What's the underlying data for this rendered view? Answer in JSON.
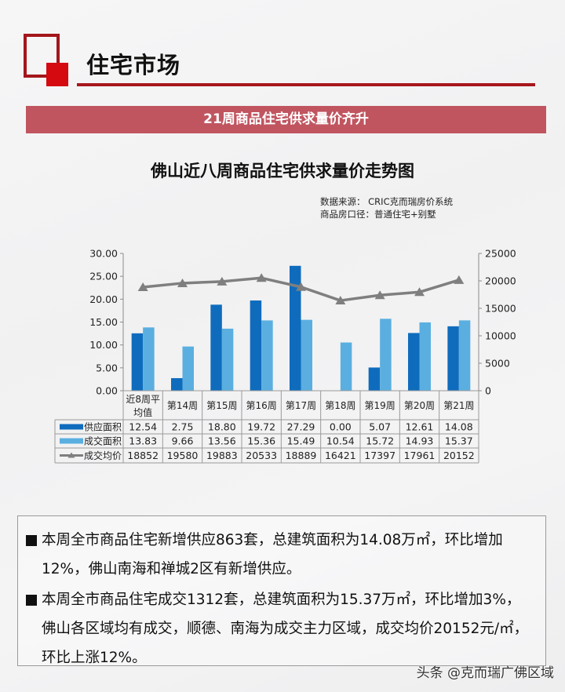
{
  "header": {
    "section_title": "住宅市场",
    "banner_text": "21周商品住宅供求量价齐升",
    "brand_colors": {
      "dark_red": "#a7181d",
      "red": "#d40a10",
      "banner": "#c05560"
    }
  },
  "chart_header": {
    "title": "佛山近八周商品住宅供求量价走势图",
    "source_line": "数据来源： CRIC克而瑞房价系统",
    "scope_line": "商品房口径：普通住宅+别墅"
  },
  "chart_data": {
    "type": "bar",
    "title": "佛山近八周商品住宅供求量价走势图",
    "categories": [
      "近8周平均值",
      "第14周",
      "第15周",
      "第16周",
      "第17周",
      "第18周",
      "第19周",
      "第20周",
      "第21周"
    ],
    "category_lines": [
      [
        "近8周平",
        "均值"
      ],
      [
        "第14周"
      ],
      [
        "第15周"
      ],
      [
        "第16周"
      ],
      [
        "第17周"
      ],
      [
        "第18周"
      ],
      [
        "第19周"
      ],
      [
        "第20周"
      ],
      [
        "第21周"
      ]
    ],
    "series": [
      {
        "name": "供应面积",
        "type": "bar",
        "axis": "left",
        "color": "#0f6cbd",
        "values": [
          12.54,
          2.75,
          18.8,
          19.72,
          27.29,
          0.0,
          5.07,
          12.61,
          14.08
        ],
        "labels": [
          "12.54",
          "2.75",
          "18.80",
          "19.72",
          "27.29",
          "0.00",
          "5.07",
          "12.61",
          "14.08"
        ]
      },
      {
        "name": "成交面积",
        "type": "bar",
        "axis": "left",
        "color": "#5aafe0",
        "values": [
          13.83,
          9.66,
          13.56,
          15.36,
          15.49,
          10.54,
          15.72,
          14.93,
          15.37
        ],
        "labels": [
          "13.83",
          "9.66",
          "13.56",
          "15.36",
          "15.49",
          "10.54",
          "15.72",
          "14.93",
          "15.37"
        ]
      },
      {
        "name": "成交均价",
        "type": "line",
        "axis": "right",
        "color": "#7f7f7f",
        "marker": "triangle",
        "values": [
          18852,
          19580,
          19883,
          20533,
          18889,
          16421,
          17397,
          17961,
          20152
        ],
        "labels": [
          "18852",
          "19580",
          "19883",
          "20533",
          "18889",
          "16421",
          "17397",
          "17961",
          "20152"
        ]
      }
    ],
    "left_axis": {
      "range": [
        0,
        30
      ],
      "ticks": [
        "0.00",
        "5.00",
        "10.00",
        "15.00",
        "20.00",
        "25.00",
        "30.00"
      ]
    },
    "right_axis": {
      "range": [
        0,
        25000
      ],
      "ticks": [
        "0",
        "5000",
        "10000",
        "15000",
        "20000",
        "25000"
      ]
    },
    "xlabel": "",
    "ylabel": "",
    "grid": false,
    "legend_position": "data-table"
  },
  "summary": {
    "paragraphs": [
      "本周全市商品住宅新增供应863套，总建筑面积为14.08万㎡，环比增加12%，佛山南海和禅城2区有新增供应。",
      "本周全市商品住宅成交1312套，总建筑面积为15.37万㎡，环比增加3%，佛山各区域均有成交，顺德、南海为成交主力区域，成交均价20152元/㎡，环比上涨12%。"
    ]
  },
  "watermark": "头条 @克而瑞广佛区域"
}
